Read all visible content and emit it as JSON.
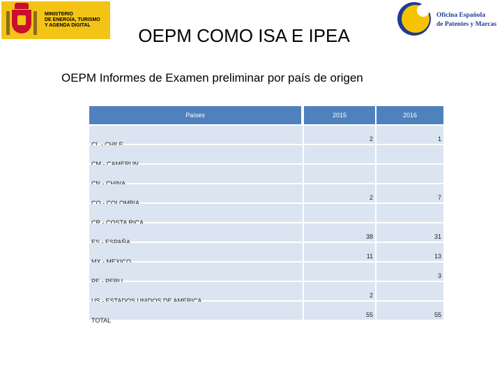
{
  "header": {
    "ministry_logo_text": "MINISTERIO\nDE ENERGÍA, TURISMO\nY AGENDA DIGITAL",
    "oepm_logo_line1": "Oficina Española",
    "oepm_logo_line2": "de Patentes y Marcas",
    "title": "OEPM COMO ISA E IPEA"
  },
  "subtitle": "OEPM Informes de Examen preliminar por país de origen",
  "table": {
    "headers": [
      "Países",
      "2015",
      "2016"
    ],
    "rows": [
      {
        "country": "CL - CHILE",
        "y2015": "2",
        "y2016": "1"
      },
      {
        "country": "CM - CAMERUN",
        "y2015": "",
        "y2016": ""
      },
      {
        "country": "CN - CHINA",
        "y2015": "",
        "y2016": ""
      },
      {
        "country": "CO - COLOMBIA",
        "y2015": "2",
        "y2016": "7"
      },
      {
        "country": "CR - COSTA RICA",
        "y2015": "",
        "y2016": ""
      },
      {
        "country": "ES - ESPAÑA",
        "y2015": "38",
        "y2016": "31"
      },
      {
        "country": "MX - MEXICO",
        "y2015": "11",
        "y2016": "13"
      },
      {
        "country": "PE - PERU",
        "y2015": "",
        "y2016": "3"
      },
      {
        "country": "US - ESTADOS UNIDOS DE AMERICA",
        "y2015": "2",
        "y2016": ""
      },
      {
        "country": "TOTAL",
        "y2015": "55",
        "y2016": "55"
      }
    ]
  }
}
